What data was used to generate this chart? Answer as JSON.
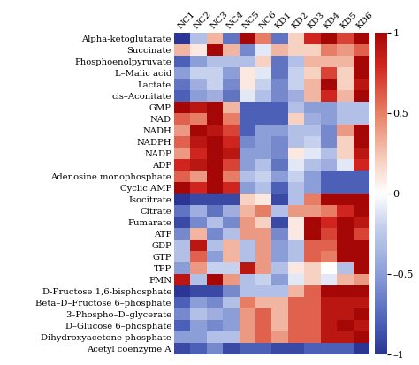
{
  "rows": [
    "Alpha-ketoglutarate",
    "Succinate",
    "Phosphoenolpyruvate",
    "L–Malic acid",
    "Lactate",
    "cis–Aconitate",
    "GMP",
    "NAD",
    "NADH",
    "NADPH",
    "NADP",
    "ADP",
    "Adenosine monophosphate",
    "Cyclic AMP",
    "Isocitrate",
    "Citrate",
    "Fumarate",
    "ATP",
    "GDP",
    "GTP",
    "TPP",
    "FMN",
    "D-Fructose 1,6-bisphosphate",
    "Beta–D–Fructose 6–phosphate",
    "3–Phospho–D–glycerate",
    "D–Glucose 6–phosphate",
    "Dihydroxyacetone phosphate",
    "Acetyl coenzyme A"
  ],
  "cols": [
    "NC1",
    "NC2",
    "NC3",
    "NC4",
    "NC5",
    "NC6",
    "KD1",
    "KD2",
    "KD3",
    "KD4",
    "KD5",
    "KD6"
  ],
  "data": [
    [
      -1.0,
      -0.3,
      0.3,
      -0.7,
      1.0,
      0.5,
      -0.7,
      0.2,
      0.8,
      1.0,
      0.7,
      1.0
    ],
    [
      0.3,
      0.1,
      1.0,
      0.3,
      -0.6,
      -0.1,
      0.3,
      0.2,
      0.2,
      0.5,
      0.4,
      0.6
    ],
    [
      -0.8,
      -0.5,
      -0.3,
      -0.3,
      -0.3,
      0.2,
      -0.7,
      -0.3,
      0.3,
      0.3,
      0.3,
      1.0
    ],
    [
      -0.5,
      -0.2,
      -0.2,
      -0.5,
      0.1,
      -0.1,
      -0.7,
      -0.2,
      0.2,
      0.7,
      0.2,
      1.0
    ],
    [
      -0.7,
      -0.4,
      -0.2,
      -0.6,
      0.1,
      -0.2,
      -0.6,
      -0.2,
      0.3,
      1.0,
      0.2,
      0.9
    ],
    [
      -0.8,
      -0.5,
      -0.4,
      -0.7,
      -0.1,
      -0.3,
      -0.6,
      -0.4,
      0.3,
      0.8,
      0.3,
      1.0
    ],
    [
      1.0,
      0.9,
      1.0,
      0.3,
      -0.8,
      -0.8,
      -0.8,
      -0.3,
      -0.5,
      -0.5,
      -0.3,
      -0.3
    ],
    [
      0.6,
      0.5,
      1.0,
      0.5,
      -0.8,
      -0.8,
      -0.8,
      0.2,
      -0.4,
      -0.5,
      -0.3,
      -0.3
    ],
    [
      0.4,
      1.0,
      0.9,
      0.7,
      -0.8,
      -0.5,
      -0.5,
      -0.3,
      -0.3,
      -0.6,
      0.4,
      1.0
    ],
    [
      0.6,
      0.9,
      1.0,
      0.8,
      -0.6,
      -0.5,
      -0.6,
      -0.3,
      -0.2,
      -0.6,
      0.2,
      1.0
    ],
    [
      0.4,
      0.8,
      1.0,
      0.9,
      -0.5,
      -0.5,
      -0.6,
      0.1,
      -0.1,
      -0.3,
      0.2,
      0.9
    ],
    [
      0.8,
      0.9,
      1.0,
      0.7,
      -0.5,
      -0.3,
      -0.7,
      -0.1,
      -0.3,
      -0.4,
      -0.1,
      0.8
    ],
    [
      0.6,
      0.4,
      1.0,
      0.5,
      -0.3,
      -0.2,
      -0.5,
      -0.2,
      -0.5,
      -0.8,
      -0.8,
      -0.8
    ],
    [
      1.0,
      0.8,
      1.0,
      0.8,
      -0.5,
      -0.3,
      -0.8,
      -0.3,
      -0.5,
      -0.8,
      -0.8,
      -0.8
    ],
    [
      -1.0,
      -0.9,
      -0.9,
      -0.9,
      0.2,
      0.1,
      -0.9,
      -0.3,
      0.5,
      1.0,
      1.0,
      1.0
    ],
    [
      -0.7,
      -0.4,
      -0.7,
      -0.4,
      0.3,
      0.5,
      -0.3,
      0.4,
      0.4,
      0.5,
      0.8,
      1.0
    ],
    [
      -0.9,
      -0.6,
      -0.3,
      -0.6,
      0.4,
      0.2,
      -0.9,
      0.1,
      1.0,
      0.8,
      1.0,
      0.9
    ],
    [
      -0.6,
      0.3,
      -0.6,
      -0.3,
      0.4,
      0.4,
      -0.6,
      0.1,
      1.0,
      0.7,
      1.0,
      0.7
    ],
    [
      -0.3,
      0.9,
      -0.3,
      0.3,
      -0.3,
      0.4,
      -0.5,
      -0.3,
      0.6,
      0.6,
      1.0,
      1.0
    ],
    [
      -0.3,
      0.6,
      -0.5,
      0.3,
      -0.3,
      0.4,
      -0.5,
      -0.3,
      0.6,
      0.5,
      1.0,
      1.0
    ],
    [
      -0.5,
      0.4,
      -0.2,
      -0.2,
      0.9,
      0.4,
      -0.3,
      0.1,
      0.2,
      0.0,
      -0.3,
      1.0
    ],
    [
      0.9,
      -0.3,
      1.0,
      0.4,
      -0.3,
      -0.2,
      -0.5,
      -0.1,
      0.2,
      -0.1,
      0.3,
      0.4
    ],
    [
      -1.0,
      -0.9,
      -0.9,
      -0.6,
      -0.3,
      -0.3,
      -0.3,
      0.3,
      0.6,
      1.0,
      1.0,
      1.0
    ],
    [
      -0.8,
      -0.5,
      -0.6,
      -0.3,
      0.5,
      0.3,
      0.3,
      0.6,
      0.6,
      0.9,
      0.9,
      0.9
    ],
    [
      -0.6,
      -0.3,
      -0.4,
      -0.5,
      0.4,
      0.6,
      0.3,
      0.6,
      0.6,
      0.9,
      0.9,
      1.0
    ],
    [
      -0.8,
      -0.5,
      -0.6,
      -0.5,
      0.4,
      0.6,
      0.3,
      0.6,
      0.6,
      0.9,
      1.0,
      0.9
    ],
    [
      -0.5,
      -0.5,
      -0.3,
      -0.3,
      0.4,
      0.6,
      0.4,
      0.6,
      0.6,
      0.9,
      0.9,
      1.0
    ],
    [
      -0.9,
      -0.8,
      -0.6,
      -0.9,
      -0.8,
      -0.8,
      -0.9,
      -0.9,
      -0.8,
      -0.8,
      -0.8,
      -1.0
    ]
  ],
  "vmin": -1,
  "vmax": 1,
  "colorbar_ticks": [
    1,
    0.5,
    0,
    -0.5,
    -1
  ],
  "colorbar_ticklabels": [
    "1",
    "0.5",
    "0",
    "–0.5",
    "–1"
  ],
  "fontsize_row": 7.2,
  "fontsize_col": 7.5,
  "fontsize_cbar": 8
}
